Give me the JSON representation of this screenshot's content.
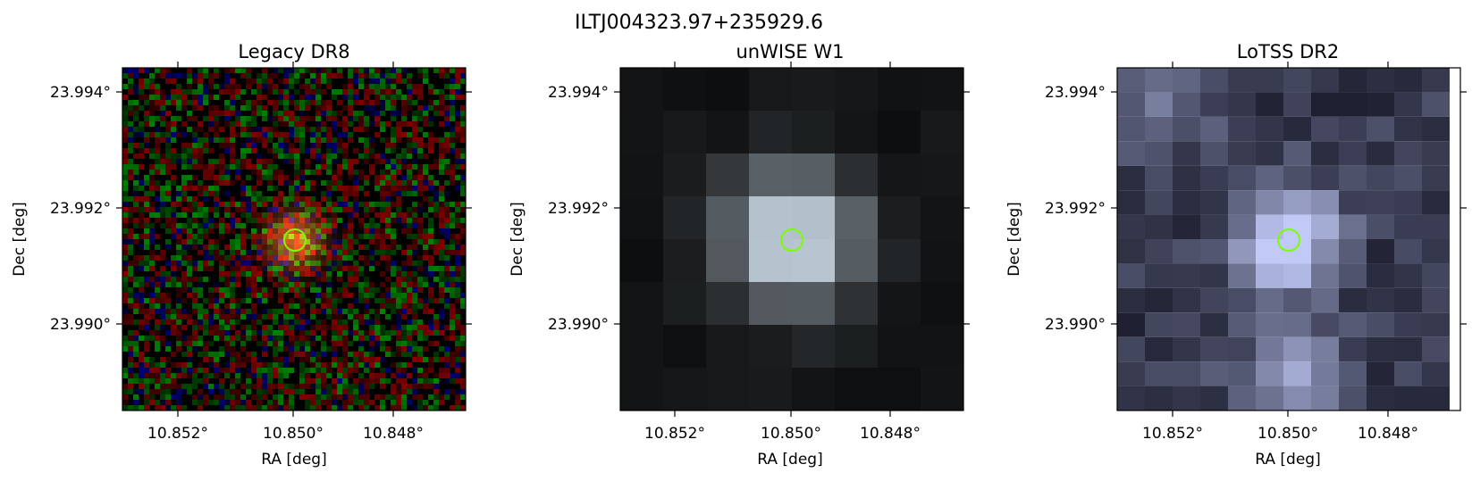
{
  "figure": {
    "title": "ILTJ004323.97+235929.6"
  },
  "colors": {
    "marker": "#7cfc00",
    "frame": "#000000"
  },
  "panels": [
    {
      "key": "legacy",
      "title": "Legacy DR8",
      "xlabel": "RA [deg]",
      "ylabel": "Dec [deg]",
      "xticks": [
        "10.852°",
        "10.850°",
        "10.848°"
      ],
      "yticks": [
        "23.994°",
        "23.992°",
        "23.990°"
      ],
      "image": "rgb-noise-with-orange-source"
    },
    {
      "key": "unwise",
      "title": "unWISE W1",
      "xlabel": "RA [deg]",
      "ylabel": "Dec [deg]",
      "xticks": [
        "10.852°",
        "10.850°",
        "10.848°"
      ],
      "yticks": [
        "23.994°",
        "23.992°",
        "23.990°"
      ],
      "image": "grayscale-bone-coarse-pixels"
    },
    {
      "key": "lotss",
      "title": "LoTSS DR2",
      "xlabel": "RA [deg]",
      "ylabel": "Dec [deg]",
      "xticks": [
        "10.852°",
        "10.850°",
        "10.848°"
      ],
      "yticks": [
        "23.994°",
        "23.992°",
        "23.990°"
      ],
      "image": "bone-colormap-radio-pixels"
    }
  ]
}
